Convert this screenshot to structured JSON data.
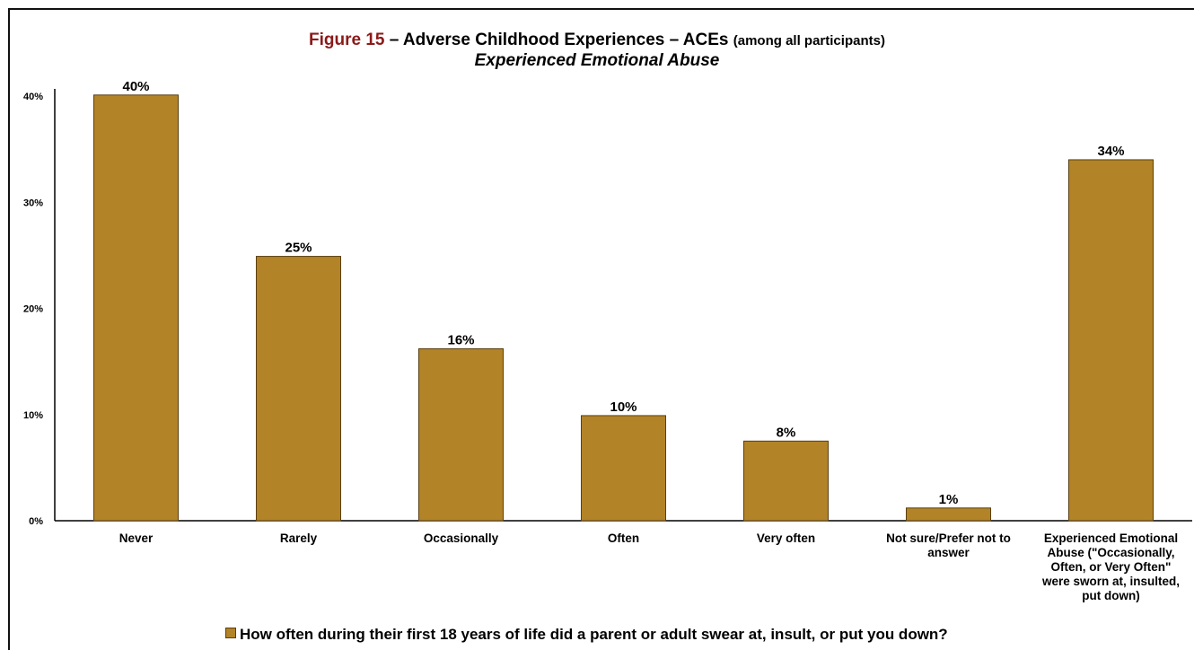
{
  "title": {
    "figure_label": "Figure 15",
    "main": " – Adverse Childhood Experiences – ACEs",
    "qualifier": "(among all participants)",
    "subtitle": "Experienced Emotional Abuse"
  },
  "legend": {
    "label": "How often during their first 18 years of life did a parent or adult swear at, insult, or put you down?"
  },
  "colors": {
    "bar": "#b28327",
    "bar_border": "#5a3f10",
    "title_accent": "#8b1a1a"
  },
  "chart_data": {
    "type": "bar",
    "categories": [
      "Never",
      "Rarely",
      "Occasionally",
      "Often",
      "Very often",
      "Not sure/Prefer not to answer",
      "Experienced Emotional Abuse (\"Occasionally, Often, or Very Often\" were sworn at, insulted, put down)"
    ],
    "category_lines": [
      [
        "Never"
      ],
      [
        "Rarely"
      ],
      [
        "Occasionally"
      ],
      [
        "Often"
      ],
      [
        "Very often"
      ],
      [
        "Not sure/Prefer not to",
        "answer"
      ],
      [
        "Experienced Emotional",
        "Abuse (\"Occasionally,",
        "Often, or Very Often\"",
        "were sworn at, insulted,",
        "put down)"
      ]
    ],
    "values": [
      40,
      25,
      16,
      10,
      8,
      1,
      34
    ],
    "value_values": [
      40.1,
      24.9,
      16.2,
      9.9,
      7.5,
      1.2,
      34.0
    ],
    "data_labels": [
      "40%",
      "25%",
      "16%",
      "10%",
      "8%",
      "1%",
      "34%"
    ],
    "yticks": [
      "0%",
      "10%",
      "20%",
      "30%",
      "40%"
    ],
    "ytick_values": [
      0,
      10,
      20,
      30,
      40
    ],
    "ylim": [
      0,
      41
    ],
    "xlabel": "",
    "ylabel": "",
    "grid": false,
    "legend_position": "bottom"
  }
}
